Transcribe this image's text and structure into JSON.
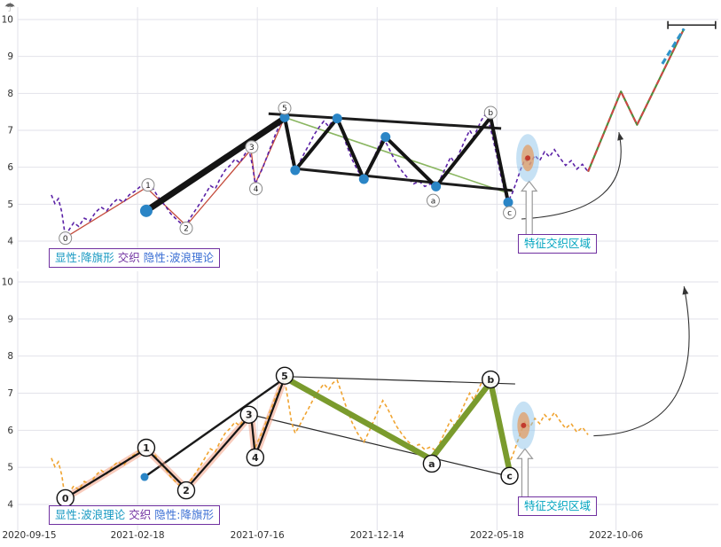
{
  "meta": {
    "corner_icon": "☂",
    "bg": "#ffffff",
    "grid_color": "#e2e2ea",
    "tick_color": "#303030",
    "accent_colors": {
      "price_top": "#5b21a6",
      "price_bottom": "#f0a431",
      "pivot_blue": "#2a85c6",
      "caption_border_purple": "#7030a0",
      "caption_teal": "#1899c2",
      "caption_blue": "#3b6fd4",
      "feature_teal": "#00a4bf",
      "highlight_blue": "#8ec3ea",
      "highlight_orange": "#e59a5e",
      "highlight_red": "#c23b2e"
    }
  },
  "axes": {
    "x_ticks": [
      {
        "label": "2020-09-15",
        "f": 0.0
      },
      {
        "label": "2021-02-18",
        "f": 0.171
      },
      {
        "label": "2021-07-16",
        "f": 0.342
      },
      {
        "label": "2021-12-14",
        "f": 0.513
      },
      {
        "label": "2022-05-18",
        "f": 0.684
      },
      {
        "label": "2022-10-06",
        "f": 0.854
      }
    ],
    "y_ticks": [
      10,
      9,
      8,
      7,
      6,
      5,
      4
    ]
  },
  "chart_data": [
    {
      "panel": "top",
      "type": "line",
      "title": "",
      "xlabel": "",
      "ylabel": "",
      "ylim": [
        4,
        10
      ],
      "grid": true,
      "caption": {
        "visible": "显性:降旗形",
        "mid": "交织",
        "hidden": "隐性:波浪理论"
      },
      "feature_label": "特征交织区域",
      "price": {
        "name": "price",
        "color": "#5b21a6",
        "width": 1.6,
        "dash": "4 3",
        "points": [
          [
            0.048,
            5.25
          ],
          [
            0.053,
            5.02
          ],
          [
            0.058,
            5.15
          ],
          [
            0.063,
            4.78
          ],
          [
            0.068,
            4.1
          ],
          [
            0.073,
            4.3
          ],
          [
            0.08,
            4.5
          ],
          [
            0.087,
            4.4
          ],
          [
            0.095,
            4.62
          ],
          [
            0.103,
            4.55
          ],
          [
            0.111,
            4.78
          ],
          [
            0.119,
            4.92
          ],
          [
            0.127,
            4.82
          ],
          [
            0.135,
            5.02
          ],
          [
            0.143,
            5.15
          ],
          [
            0.151,
            5.05
          ],
          [
            0.159,
            5.25
          ],
          [
            0.167,
            5.35
          ],
          [
            0.175,
            5.48
          ],
          [
            0.183,
            5.4
          ],
          [
            0.19,
            5.52
          ],
          [
            0.197,
            5.3
          ],
          [
            0.204,
            5.1
          ],
          [
            0.211,
            4.95
          ],
          [
            0.218,
            4.75
          ],
          [
            0.226,
            4.6
          ],
          [
            0.233,
            4.48
          ],
          [
            0.24,
            4.42
          ],
          [
            0.247,
            4.65
          ],
          [
            0.254,
            4.85
          ],
          [
            0.261,
            5.05
          ],
          [
            0.268,
            5.28
          ],
          [
            0.275,
            5.5
          ],
          [
            0.282,
            5.42
          ],
          [
            0.289,
            5.7
          ],
          [
            0.296,
            5.92
          ],
          [
            0.303,
            6.05
          ],
          [
            0.31,
            6.22
          ],
          [
            0.317,
            6.12
          ],
          [
            0.324,
            6.35
          ],
          [
            0.33,
            6.48
          ],
          [
            0.335,
            6.05
          ],
          [
            0.339,
            5.55
          ],
          [
            0.344,
            5.75
          ],
          [
            0.35,
            6.0
          ],
          [
            0.356,
            6.3
          ],
          [
            0.362,
            6.6
          ],
          [
            0.368,
            6.9
          ],
          [
            0.374,
            7.15
          ],
          [
            0.381,
            7.35
          ],
          [
            0.386,
            6.8
          ],
          [
            0.391,
            6.2
          ],
          [
            0.396,
            5.92
          ],
          [
            0.402,
            6.12
          ],
          [
            0.409,
            6.38
          ],
          [
            0.416,
            6.62
          ],
          [
            0.423,
            6.88
          ],
          [
            0.43,
            7.08
          ],
          [
            0.437,
            7.25
          ],
          [
            0.444,
            7.1
          ],
          [
            0.45,
            7.28
          ],
          [
            0.456,
            7.35
          ],
          [
            0.462,
            7.02
          ],
          [
            0.469,
            6.62
          ],
          [
            0.477,
            6.22
          ],
          [
            0.485,
            5.92
          ],
          [
            0.494,
            5.68
          ],
          [
            0.501,
            5.95
          ],
          [
            0.508,
            6.25
          ],
          [
            0.515,
            6.55
          ],
          [
            0.521,
            6.8
          ],
          [
            0.527,
            6.62
          ],
          [
            0.534,
            6.35
          ],
          [
            0.541,
            6.1
          ],
          [
            0.549,
            5.88
          ],
          [
            0.557,
            5.7
          ],
          [
            0.565,
            5.55
          ],
          [
            0.573,
            5.62
          ],
          [
            0.581,
            5.48
          ],
          [
            0.589,
            5.55
          ],
          [
            0.597,
            5.45
          ],
          [
            0.604,
            5.72
          ],
          [
            0.611,
            6.0
          ],
          [
            0.618,
            6.28
          ],
          [
            0.624,
            6.1
          ],
          [
            0.631,
            6.42
          ],
          [
            0.638,
            6.72
          ],
          [
            0.645,
            7.0
          ],
          [
            0.651,
            6.82
          ],
          [
            0.657,
            7.08
          ],
          [
            0.662,
            7.28
          ],
          [
            0.667,
            7.42
          ],
          [
            0.672,
            7.25
          ],
          [
            0.677,
            6.88
          ],
          [
            0.683,
            6.38
          ],
          [
            0.689,
            5.82
          ],
          [
            0.695,
            5.35
          ],
          [
            0.7,
            5.08
          ],
          [
            0.706,
            5.3
          ],
          [
            0.712,
            5.62
          ],
          [
            0.718,
            5.95
          ],
          [
            0.724,
            6.22
          ],
          [
            0.731,
            6.08
          ],
          [
            0.738,
            6.32
          ],
          [
            0.745,
            6.18
          ],
          [
            0.752,
            6.42
          ],
          [
            0.759,
            6.28
          ],
          [
            0.766,
            6.48
          ],
          [
            0.774,
            6.25
          ],
          [
            0.782,
            6.05
          ],
          [
            0.79,
            6.18
          ],
          [
            0.798,
            5.95
          ],
          [
            0.806,
            6.08
          ],
          [
            0.814,
            5.88
          ]
        ]
      },
      "overlays": [
        {
          "name": "flag-midline",
          "layer": "under",
          "color": "#8ab661",
          "width": 1.6,
          "points": [
            [
              0.381,
              7.35
            ],
            [
              0.7,
              5.3
            ]
          ]
        },
        {
          "name": "wave-path-red",
          "layer": "under",
          "color": "#c44b3c",
          "width": 1.3,
          "points": [
            [
              0.068,
              4.1
            ],
            [
              0.1835,
              5.45
            ],
            [
              0.2405,
              4.42
            ],
            [
              0.333,
              6.48
            ],
            [
              0.339,
              5.55
            ],
            [
              0.381,
              7.35
            ]
          ]
        },
        {
          "name": "flag-pole",
          "layer": "over",
          "color": "#141414",
          "width": 7,
          "cap": "round",
          "points": [
            [
              0.1835,
              4.82
            ],
            [
              0.381,
              7.33
            ]
          ]
        },
        {
          "name": "channel-upper",
          "layer": "over",
          "color": "#1c1c1c",
          "width": 3,
          "points": [
            [
              0.358,
              7.45
            ],
            [
              0.69,
              7.05
            ]
          ]
        },
        {
          "name": "channel-lower",
          "layer": "over",
          "color": "#1c1c1c",
          "width": 3,
          "points": [
            [
              0.392,
              5.97
            ],
            [
              0.706,
              5.37
            ]
          ]
        },
        {
          "name": "wave-zigzag",
          "layer": "over",
          "color": "#141414",
          "width": 4,
          "points": [
            [
              0.381,
              7.35
            ],
            [
              0.396,
              5.92
            ],
            [
              0.456,
              7.32
            ],
            [
              0.494,
              5.68
            ],
            [
              0.525,
              6.82
            ],
            [
              0.597,
              5.48
            ],
            [
              0.675,
              7.35
            ],
            [
              0.7,
              5.05
            ]
          ]
        },
        {
          "name": "projection-green",
          "layer": "over",
          "color": "#4c8f3c",
          "width": 2.2,
          "points": [
            [
              0.814,
              5.88
            ],
            [
              0.861,
              8.05
            ],
            [
              0.884,
              7.15
            ],
            [
              0.951,
              9.75
            ]
          ]
        },
        {
          "name": "projection-red-dashed",
          "layer": "over",
          "color": "#d24545",
          "width": 2,
          "dash": "6 4",
          "points": [
            [
              0.814,
              5.88
            ],
            [
              0.861,
              8.05
            ],
            [
              0.884,
              7.15
            ],
            [
              0.951,
              9.75
            ]
          ]
        },
        {
          "name": "projection-teal-dashed",
          "layer": "over",
          "color": "#2e93c9",
          "width": 3.2,
          "dash": "7 4",
          "points": [
            [
              0.92,
              8.8
            ],
            [
              0.951,
              9.75
            ]
          ]
        },
        {
          "name": "target-cap",
          "layer": "over",
          "type": "capline",
          "color": "#222222",
          "v": 9.85,
          "f0": 0.928,
          "f1": 0.996
        },
        {
          "name": "projection-guide-arrow",
          "layer": "over",
          "type": "quad-arrow",
          "color": "#333333",
          "p0": [
            0.719,
            4.6
          ],
          "c": [
            0.882,
            4.78
          ],
          "p1": [
            0.858,
            6.95
          ]
        },
        {
          "name": "feature-arrow",
          "layer": "over",
          "type": "up-arrow",
          "f": 0.73,
          "v_tail": 4.12,
          "v_head": 5.62
        }
      ],
      "pivot_dots": {
        "color": "#2a85c6",
        "points": [
          [
            0.1835,
            4.82,
            7
          ],
          [
            0.381,
            7.35,
            5.5
          ],
          [
            0.396,
            5.92,
            5.5
          ],
          [
            0.456,
            7.32,
            5.5
          ],
          [
            0.494,
            5.68,
            5.5
          ],
          [
            0.525,
            6.82,
            5.5
          ],
          [
            0.597,
            5.48,
            5.5
          ],
          [
            0.7,
            5.05,
            5.5
          ]
        ]
      },
      "wave_label_style": {
        "r": 7,
        "font": 9,
        "weight": "normal",
        "stroke": "#8a8a8a",
        "stroke_width": 1
      },
      "wave_labels": [
        {
          "t": "0",
          "f": 0.068,
          "v": 4.08
        },
        {
          "t": "1",
          "f": 0.186,
          "v": 5.52
        },
        {
          "t": "2",
          "f": 0.2405,
          "v": 4.35
        },
        {
          "t": "3",
          "f": 0.334,
          "v": 6.55
        },
        {
          "t": "4",
          "f": 0.34,
          "v": 5.42
        },
        {
          "t": "5",
          "f": 0.381,
          "v": 7.6
        },
        {
          "t": "a",
          "f": 0.593,
          "v": 5.1
        },
        {
          "t": "b",
          "f": 0.675,
          "v": 7.48
        },
        {
          "t": "c",
          "f": 0.702,
          "v": 4.77
        }
      ],
      "highlight": {
        "f": 0.728,
        "v": 6.25
      }
    },
    {
      "panel": "bottom",
      "type": "line",
      "title": "",
      "xlabel": "",
      "ylabel": "",
      "ylim": [
        4,
        10
      ],
      "grid": true,
      "caption": {
        "visible": "显性:波浪理论",
        "mid": "交织",
        "hidden": "隐性:降旗形"
      },
      "feature_label": "特征交织区域",
      "price": {
        "name": "price",
        "color": "#f0a431",
        "width": 1.6,
        "dash": "4 3",
        "points": "same_as_panel_0"
      },
      "overlays": [
        {
          "name": "flag-upper-line",
          "layer": "under",
          "color": "#2a2a2a",
          "width": 1.2,
          "points": [
            [
              0.381,
              7.45
            ],
            [
              0.71,
              7.25
            ]
          ]
        },
        {
          "name": "flag-lower-line",
          "layer": "under",
          "color": "#2a2a2a",
          "width": 1.2,
          "points": [
            [
              0.333,
              6.42
            ],
            [
              0.71,
              4.72
            ]
          ]
        },
        {
          "name": "pole-line",
          "layer": "under",
          "color": "#1a1a1a",
          "width": 2.4,
          "points": [
            [
              0.181,
              4.74
            ],
            [
              0.381,
              7.4
            ]
          ]
        },
        {
          "name": "wave-glow",
          "layer": "under",
          "color": "#f2a085",
          "width": 8,
          "opacity": 0.55,
          "points": [
            [
              0.068,
              4.17
            ],
            [
              0.1835,
              5.5
            ],
            [
              0.2405,
              4.42
            ],
            [
              0.333,
              6.42
            ],
            [
              0.339,
              5.3
            ],
            [
              0.381,
              7.42
            ]
          ]
        },
        {
          "name": "wave-zigzag",
          "layer": "over",
          "color": "#141414",
          "width": 2.2,
          "points": [
            [
              0.068,
              4.17
            ],
            [
              0.1835,
              5.5
            ],
            [
              0.2405,
              4.42
            ],
            [
              0.333,
              6.42
            ],
            [
              0.339,
              5.3
            ],
            [
              0.381,
              7.42
            ]
          ]
        },
        {
          "name": "abc-zigzag-green",
          "layer": "over",
          "color": "#7a9b2d",
          "width": 6.5,
          "points": [
            [
              0.381,
              7.42
            ],
            [
              0.59,
              5.22
            ],
            [
              0.675,
              7.3
            ],
            [
              0.702,
              4.9
            ]
          ]
        },
        {
          "name": "projection-guide-arrow",
          "layer": "over",
          "type": "quad-arrow",
          "color": "#333333",
          "p0": [
            0.822,
            5.85
          ],
          "c": [
            0.99,
            5.95
          ],
          "p1": [
            0.951,
            9.88
          ]
        },
        {
          "name": "feature-arrow",
          "layer": "over",
          "type": "up-arrow",
          "f": 0.724,
          "v_tail": 4.15,
          "v_head": 5.5
        }
      ],
      "pivot_dots": {
        "color": "#2a85c6",
        "points": [
          [
            0.181,
            4.74,
            4.5
          ]
        ]
      },
      "wave_label_style": {
        "r": 9.5,
        "font": 11,
        "weight": "bold",
        "stroke": "#111111",
        "stroke_width": 1.4
      },
      "wave_labels": [
        {
          "t": "0",
          "f": 0.068,
          "v": 4.17
        },
        {
          "t": "1",
          "f": 0.1835,
          "v": 5.53
        },
        {
          "t": "2",
          "f": 0.2405,
          "v": 4.38
        },
        {
          "t": "3",
          "f": 0.33,
          "v": 6.42
        },
        {
          "t": "4",
          "f": 0.339,
          "v": 5.27
        },
        {
          "t": "5",
          "f": 0.381,
          "v": 7.47
        },
        {
          "t": "a",
          "f": 0.591,
          "v": 5.1
        },
        {
          "t": "b",
          "f": 0.675,
          "v": 7.37
        },
        {
          "t": "c",
          "f": 0.702,
          "v": 4.77
        }
      ],
      "highlight": {
        "f": 0.722,
        "v": 6.13
      }
    }
  ]
}
